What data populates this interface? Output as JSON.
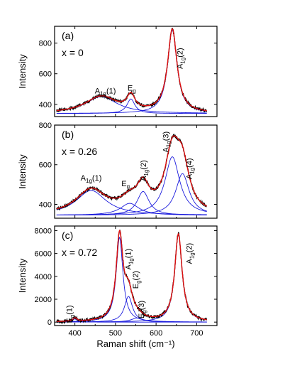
{
  "chart_data": [
    {
      "type": "line",
      "panel_label": "(a)",
      "composition": "x = 0",
      "xlim": [
        350,
        750
      ],
      "ylim": [
        320,
        910
      ],
      "yticks": [
        400,
        600,
        800
      ],
      "ylabel": "Intensity",
      "baseline": 340,
      "peaks": [
        {
          "label": "A1g(1)",
          "center": 465,
          "width": 48,
          "height": 110
        },
        {
          "label": "Eg",
          "center": 538,
          "width": 12,
          "height": 95
        },
        {
          "label": "A1g(2)",
          "center": 640,
          "width": 14,
          "height": 545
        }
      ],
      "peak_labels": [
        {
          "base": "A",
          "sub": "1g",
          "suffix": "(1)",
          "x": 475,
          "y": 470,
          "vertical": false
        },
        {
          "base": "E",
          "sub": "g",
          "suffix": "",
          "x": 540,
          "y": 490,
          "vertical": false
        },
        {
          "base": "A",
          "sub": "1g",
          "suffix": "(2)",
          "x": 665,
          "y": 700,
          "vertical": true
        }
      ]
    },
    {
      "type": "line",
      "panel_label": "(b)",
      "composition": "x = 0.26",
      "xlim": [
        350,
        750
      ],
      "ylim": [
        330,
        800
      ],
      "yticks": [
        400,
        600,
        800
      ],
      "ylabel": "Intensity",
      "baseline": 345,
      "peaks": [
        {
          "label": "A1g(1)",
          "center": 440,
          "width": 45,
          "height": 125
        },
        {
          "label": "Eg",
          "center": 535,
          "width": 28,
          "height": 60
        },
        {
          "label": "A1g(2)",
          "center": 568,
          "width": 18,
          "height": 120
        },
        {
          "label": "A1g(3)",
          "center": 640,
          "width": 22,
          "height": 295
        },
        {
          "label": "A1g(4)",
          "center": 665,
          "width": 20,
          "height": 210
        }
      ],
      "peak_labels": [
        {
          "base": "A",
          "sub": "1g",
          "suffix": "(1)",
          "x": 440,
          "y": 520,
          "vertical": false
        },
        {
          "base": "E",
          "sub": "g",
          "suffix": "",
          "x": 525,
          "y": 492,
          "vertical": false
        },
        {
          "base": "A",
          "sub": "1g",
          "suffix": "(2)",
          "x": 575,
          "y": 570,
          "vertical": true
        },
        {
          "base": "A",
          "sub": "1g",
          "suffix": "(3)",
          "x": 630,
          "y": 715,
          "vertical": true
        },
        {
          "base": "A",
          "sub": "1g",
          "suffix": "(4)",
          "x": 688,
          "y": 580,
          "vertical": true
        }
      ]
    },
    {
      "type": "line",
      "panel_label": "(c)",
      "composition": "x = 0.72",
      "xlim": [
        350,
        750
      ],
      "ylim": [
        -300,
        8400
      ],
      "yticks": [
        0,
        2000,
        4000,
        6000,
        8000
      ],
      "ylabel": "Intensity",
      "xlabel": "Raman shift (cm⁻¹)",
      "xticks": [
        400,
        500,
        600,
        700
      ],
      "baseline": 0,
      "peaks": [
        {
          "label": "Eg(1)",
          "center": 400,
          "width": 6,
          "height": 300
        },
        {
          "label": "A1g(1)",
          "center": 510,
          "width": 10,
          "height": 7400
        },
        {
          "label": "Eg(2)",
          "center": 532,
          "width": 12,
          "height": 2250
        },
        {
          "label": "Eg(3)",
          "center": 553,
          "width": 18,
          "height": 350
        },
        {
          "label": "A1g(2)",
          "center": 655,
          "width": 11,
          "height": 7650
        }
      ],
      "peak_labels": [
        {
          "base": "E",
          "sub": "g",
          "suffix": "(1)",
          "x": 393,
          "y": 700,
          "vertical": true
        },
        {
          "base": "A",
          "sub": "1g",
          "suffix": "(1)",
          "x": 538,
          "y": 5500,
          "vertical": true
        },
        {
          "base": "E",
          "sub": "g",
          "suffix": "(2)",
          "x": 556,
          "y": 3700,
          "vertical": true
        },
        {
          "base": "E",
          "sub": "g",
          "suffix": "(3)",
          "x": 570,
          "y": 1100,
          "vertical": true
        },
        {
          "base": "A",
          "sub": "1g",
          "suffix": "(2)",
          "x": 688,
          "y": 6000,
          "vertical": true
        }
      ]
    }
  ]
}
